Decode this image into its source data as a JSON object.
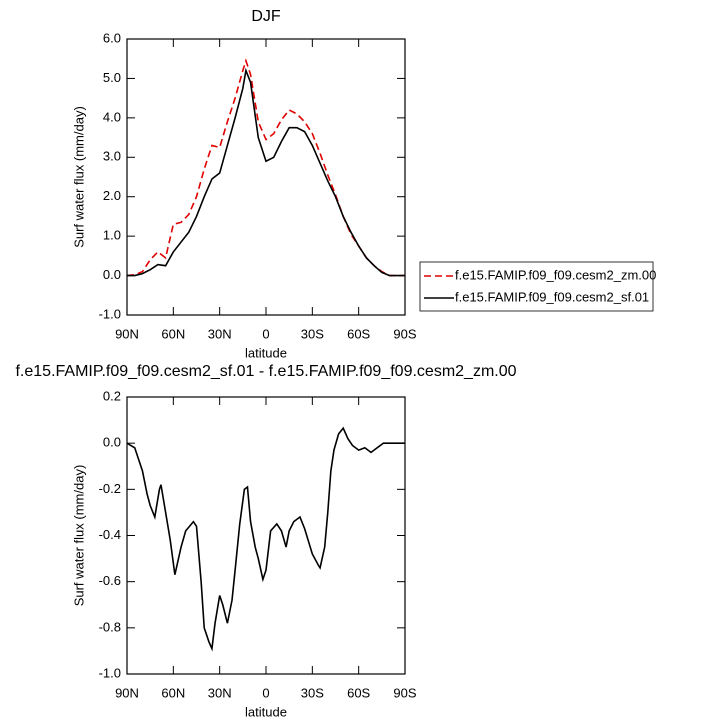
{
  "chart_data": [
    {
      "type": "line",
      "title": "DJF",
      "xlabel": "latitude",
      "ylabel": "Surf water flux (mm/day)",
      "x": [
        90,
        85,
        80,
        75,
        70,
        65,
        60,
        55,
        50,
        45,
        40,
        35,
        30,
        25,
        20,
        15,
        13,
        10,
        5,
        0,
        -5,
        -10,
        -15,
        -20,
        -25,
        -30,
        -35,
        -40,
        -45,
        -50,
        -55,
        -60,
        -65,
        -70,
        -75,
        -80,
        -85,
        -90
      ],
      "series": [
        {
          "name": "f.e15.FAMIP.f09_f09.cesm2_zm.00",
          "color": "#e00000",
          "dashed": true,
          "values": [
            0,
            0.02,
            0.1,
            0.4,
            0.6,
            0.45,
            1.3,
            1.35,
            1.55,
            2.0,
            2.7,
            3.3,
            3.25,
            3.9,
            4.5,
            5.2,
            5.45,
            5.1,
            3.9,
            3.45,
            3.6,
            3.95,
            4.2,
            4.1,
            3.9,
            3.6,
            3.1,
            2.55,
            2.05,
            1.5,
            1.05,
            0.75,
            0.45,
            0.25,
            0.1,
            0,
            0,
            0
          ]
        },
        {
          "name": "f.e15.FAMIP.f09_f09.cesm2_sf.01",
          "color": "#000000",
          "dashed": false,
          "values": [
            0,
            0,
            0.05,
            0.15,
            0.28,
            0.25,
            0.6,
            0.85,
            1.1,
            1.5,
            2.0,
            2.45,
            2.6,
            3.3,
            4.0,
            4.75,
            5.2,
            4.9,
            3.5,
            2.9,
            3.0,
            3.4,
            3.75,
            3.75,
            3.65,
            3.3,
            2.85,
            2.4,
            2.0,
            1.5,
            1.1,
            0.75,
            0.45,
            0.25,
            0.08,
            0,
            0,
            0
          ]
        }
      ],
      "xlim": [
        90,
        -90
      ],
      "xticks": [
        {
          "value": 90,
          "label": "90N"
        },
        {
          "value": 60,
          "label": "60N"
        },
        {
          "value": 30,
          "label": "30N"
        },
        0,
        {
          "value": -30,
          "label": "30S"
        },
        {
          "value": -60,
          "label": "60S"
        },
        {
          "value": -90,
          "label": "90S"
        }
      ],
      "ylim": [
        -1,
        6
      ],
      "yticks": [
        {
          "value": -1,
          "label": "-1.0"
        },
        {
          "value": 0,
          "label": "0.0"
        },
        {
          "value": 1,
          "label": "1.0"
        },
        {
          "value": 2,
          "label": "2.0"
        },
        {
          "value": 3,
          "label": "3.0"
        },
        {
          "value": 4,
          "label": "4.0"
        },
        {
          "value": 5,
          "label": "5.0"
        },
        {
          "value": 6,
          "label": "6.0"
        }
      ],
      "legend": "right"
    },
    {
      "type": "line",
      "title": "f.e15.FAMIP.f09_f09.cesm2_sf.01 - f.e15.FAMIP.f09_f09.cesm2_zm.00",
      "xlabel": "latitude",
      "ylabel": "Surf water flux (mm/day)",
      "x": [
        90,
        85,
        80,
        77,
        75,
        72,
        69,
        68,
        65,
        62,
        59,
        55,
        52,
        47,
        45,
        42,
        40,
        37,
        35,
        33,
        30,
        28,
        25,
        22,
        20,
        17,
        14,
        12,
        10,
        7,
        5,
        2,
        0,
        -3,
        -7,
        -10,
        -13,
        -15,
        -18,
        -22,
        -25,
        -30,
        -34,
        -35,
        -38,
        -40,
        -42,
        -44,
        -47,
        -50,
        -53,
        -56,
        -60,
        -64,
        -68,
        -72,
        -76,
        -80,
        -85,
        -90
      ],
      "series": [
        {
          "color": "#000000",
          "dashed": false,
          "values": [
            0,
            -0.02,
            -0.12,
            -0.22,
            -0.27,
            -0.32,
            -0.2,
            -0.18,
            -0.3,
            -0.42,
            -0.57,
            -0.45,
            -0.38,
            -0.34,
            -0.36,
            -0.6,
            -0.8,
            -0.86,
            -0.89,
            -0.78,
            -0.66,
            -0.7,
            -0.78,
            -0.68,
            -0.55,
            -0.35,
            -0.2,
            -0.19,
            -0.34,
            -0.45,
            -0.5,
            -0.59,
            -0.55,
            -0.38,
            -0.35,
            -0.38,
            -0.45,
            -0.38,
            -0.34,
            -0.32,
            -0.37,
            -0.48,
            -0.53,
            -0.54,
            -0.45,
            -0.3,
            -0.12,
            -0.03,
            0.04,
            0.065,
            0.02,
            -0.01,
            -0.03,
            -0.02,
            -0.04,
            -0.02,
            0,
            0,
            0,
            0
          ]
        }
      ],
      "xlim": [
        90,
        -90
      ],
      "xticks": [
        {
          "value": 90,
          "label": "90N"
        },
        {
          "value": 60,
          "label": "60N"
        },
        {
          "value": 30,
          "label": "30N"
        },
        0,
        {
          "value": -30,
          "label": "30S"
        },
        {
          "value": -60,
          "label": "60S"
        },
        {
          "value": -90,
          "label": "90S"
        }
      ],
      "ylim": [
        -1,
        0.2
      ],
      "yticks": [
        {
          "value": -1,
          "label": "-1.0"
        },
        -0.8,
        -0.6,
        -0.4,
        -0.2,
        {
          "value": 0,
          "label": "0.0"
        },
        0.2
      ]
    }
  ]
}
